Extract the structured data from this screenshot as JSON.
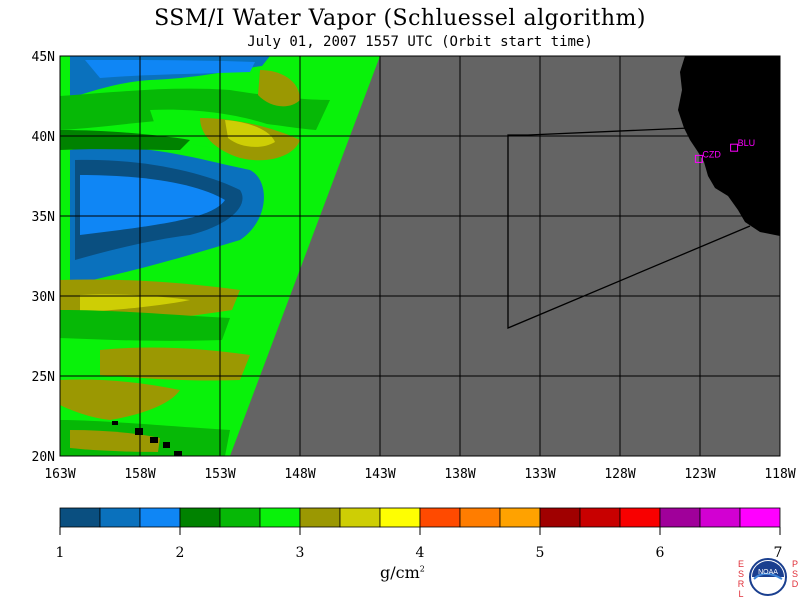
{
  "title": "SSM/I Water Vapor (Schluessel algorithm)",
  "subtitle": "July 01, 2007  1557 UTC  (Orbit start time)",
  "lat_labels": [
    "45N",
    "40N",
    "35N",
    "30N",
    "25N",
    "20N"
  ],
  "lon_labels": [
    "163W",
    "158W",
    "153W",
    "148W",
    "143W",
    "138W",
    "133W",
    "128W",
    "123W",
    "118W"
  ],
  "stations": [
    {
      "name": "CZD",
      "lon": -123.1,
      "lat": 38.6
    },
    {
      "name": "BLU",
      "lon": -120.9,
      "lat": 39.3
    }
  ],
  "colorbar": {
    "ticks": [
      "1",
      "2",
      "3",
      "4",
      "5",
      "6",
      "7"
    ],
    "units": "g/cm",
    "units_exp": "2",
    "colors": [
      "#0a4f80",
      "#0a71bd",
      "#0f86f5",
      "#008200",
      "#06b806",
      "#09f20a",
      "#9b9802",
      "#cece05",
      "#fefe02",
      "#ff4a00",
      "#ff7d00",
      "#ffa200",
      "#a00000",
      "#c80000",
      "#f80000",
      "#a0009a",
      "#d200d2",
      "#ff00ff"
    ]
  },
  "logo": {
    "left_letters": [
      "E",
      "S",
      "R",
      "L"
    ],
    "right_letters": [
      "P",
      "S",
      "D"
    ],
    "badge": "NOAA"
  }
}
